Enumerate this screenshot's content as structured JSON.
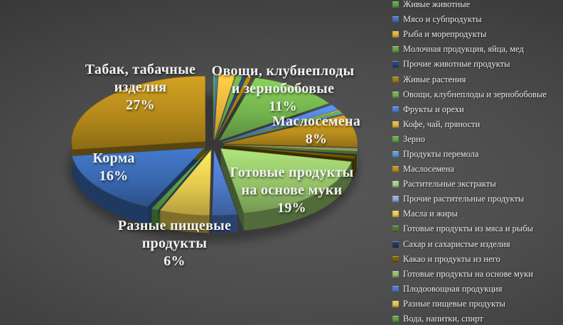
{
  "chart_data": {
    "type": "pie",
    "title": "",
    "legend_position": "right",
    "series": [
      {
        "label": "Живые животные",
        "value": 0.25,
        "color": "#5aa63e"
      },
      {
        "label": "Мясо и субпродукты",
        "value": 0.25,
        "color": "#4472c4"
      },
      {
        "label": "Рыба и морепродукты",
        "value": 2.0,
        "color": "#e6b33c"
      },
      {
        "label": "Молочная продукция,  яйца, мед",
        "value": 0.8,
        "color": "#6aa44a"
      },
      {
        "label": "Прочие животные продукты",
        "value": 0.45,
        "color": "#264478"
      },
      {
        "label": "Живые растения",
        "value": 0.6,
        "color": "#a07d14"
      },
      {
        "label": "Овощи, клубнеплоды и зернобобовые",
        "value": 11,
        "color": "#74b34e"
      },
      {
        "label": "Фрукты и орехи",
        "value": 1.5,
        "color": "#4e7fd0"
      },
      {
        "label": "Кофе, чай, пряности",
        "value": 0.25,
        "color": "#e8bc3a"
      },
      {
        "label": "Зерно",
        "value": 0.45,
        "color": "#62a945"
      },
      {
        "label": "Продукты  перемола",
        "value": 0.25,
        "color": "#5b9bd5"
      },
      {
        "label": "Маслосемена",
        "value": 8,
        "color": "#bb8f1d"
      },
      {
        "label": "Растительные экстракты",
        "value": 0.2,
        "color": "#a9d18e"
      },
      {
        "label": "Прочие растительные продукты",
        "value": 0.2,
        "color": "#8faadc"
      },
      {
        "label": "Масла и жиры",
        "value": 0.25,
        "color": "#f0cf4a"
      },
      {
        "label": "Готовые продукты из мяса и рыбы",
        "value": 0.8,
        "color": "#4e7a31"
      },
      {
        "label": "Сахар и сахаристые изделия",
        "value": 0.3,
        "color": "#1f3864"
      },
      {
        "label": "Какао и продукты из него",
        "value": 0.7,
        "color": "#7f6000"
      },
      {
        "label": "Готовые продукты на основе муки",
        "value": 19,
        "color": "#94c269"
      },
      {
        "label": "Плодоовощная продукция",
        "value": 3.0,
        "color": "#4d79c7"
      },
      {
        "label": "Разные пищевые продукты",
        "value": 6,
        "color": "#e5c94f"
      },
      {
        "label": "Вода, напитки, спирт",
        "value": 0.8,
        "color": "#5fa445"
      },
      {
        "label": "Корма",
        "value": 16,
        "color": "#3a67ae"
      },
      {
        "label": "Табак, табачные изделия",
        "value": 27,
        "color": "#b3891b"
      }
    ],
    "callouts": [
      {
        "slice": "Табак, табачные изделия",
        "pct": "27%",
        "lines": [
          "Табак, табачные",
          "изделия",
          "27%"
        ]
      },
      {
        "slice": "Овощи, клубнеплоды и зернобобовые",
        "pct": "11%",
        "lines": [
          "Овощи, клубнеплоды",
          "и зернобобовые",
          "11%"
        ]
      },
      {
        "slice": "Маслосемена",
        "pct": "8%",
        "lines": [
          "Маслосемена",
          "8%"
        ]
      },
      {
        "slice": "Готовые продукты на основе муки",
        "pct": "19%",
        "lines": [
          "Готовые продукты",
          "на основе муки",
          "19%"
        ]
      },
      {
        "slice": "Разные пищевые продукты",
        "pct": "6%",
        "lines": [
          "Разные пищевые",
          "продукты",
          "6%"
        ]
      },
      {
        "slice": "Корма",
        "pct": "16%",
        "lines": [
          "Корма",
          "16%"
        ]
      }
    ]
  },
  "legend": {
    "visible_count": 22
  }
}
